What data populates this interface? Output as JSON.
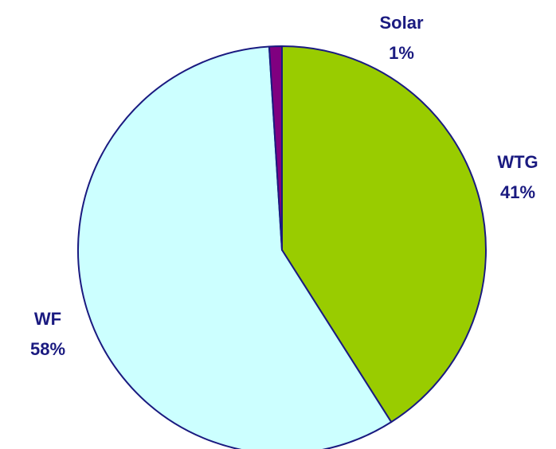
{
  "chart_data": {
    "type": "pie",
    "categories": [
      "WTG",
      "WF",
      "Solar"
    ],
    "values": [
      41,
      58,
      1
    ],
    "value_labels": [
      "41%",
      "58%",
      "1%"
    ],
    "colors": [
      "#99cc00",
      "#ccffff",
      "#800080"
    ]
  }
}
